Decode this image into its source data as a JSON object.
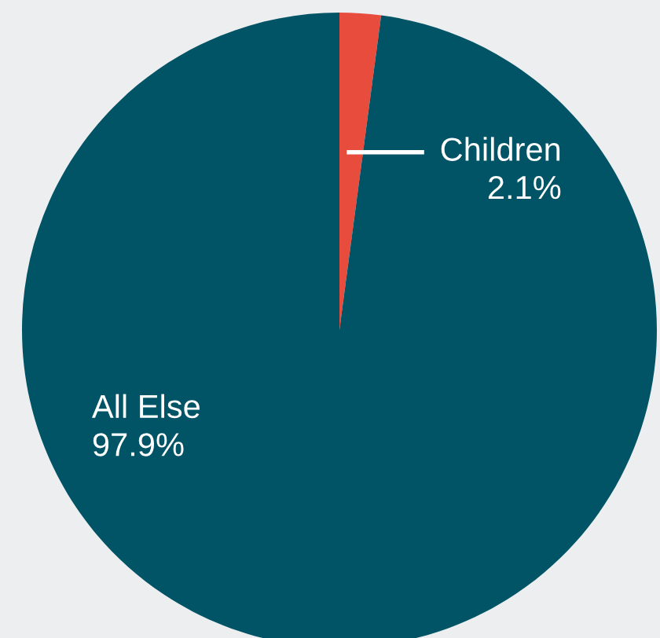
{
  "chart_data": {
    "type": "pie",
    "categories": [
      "Children",
      "All Else"
    ],
    "values": [
      2.1,
      97.9
    ],
    "colors": [
      "#e84c3d",
      "#005466"
    ],
    "value_labels": [
      "2.1%",
      "97.9%"
    ],
    "legend": false
  }
}
